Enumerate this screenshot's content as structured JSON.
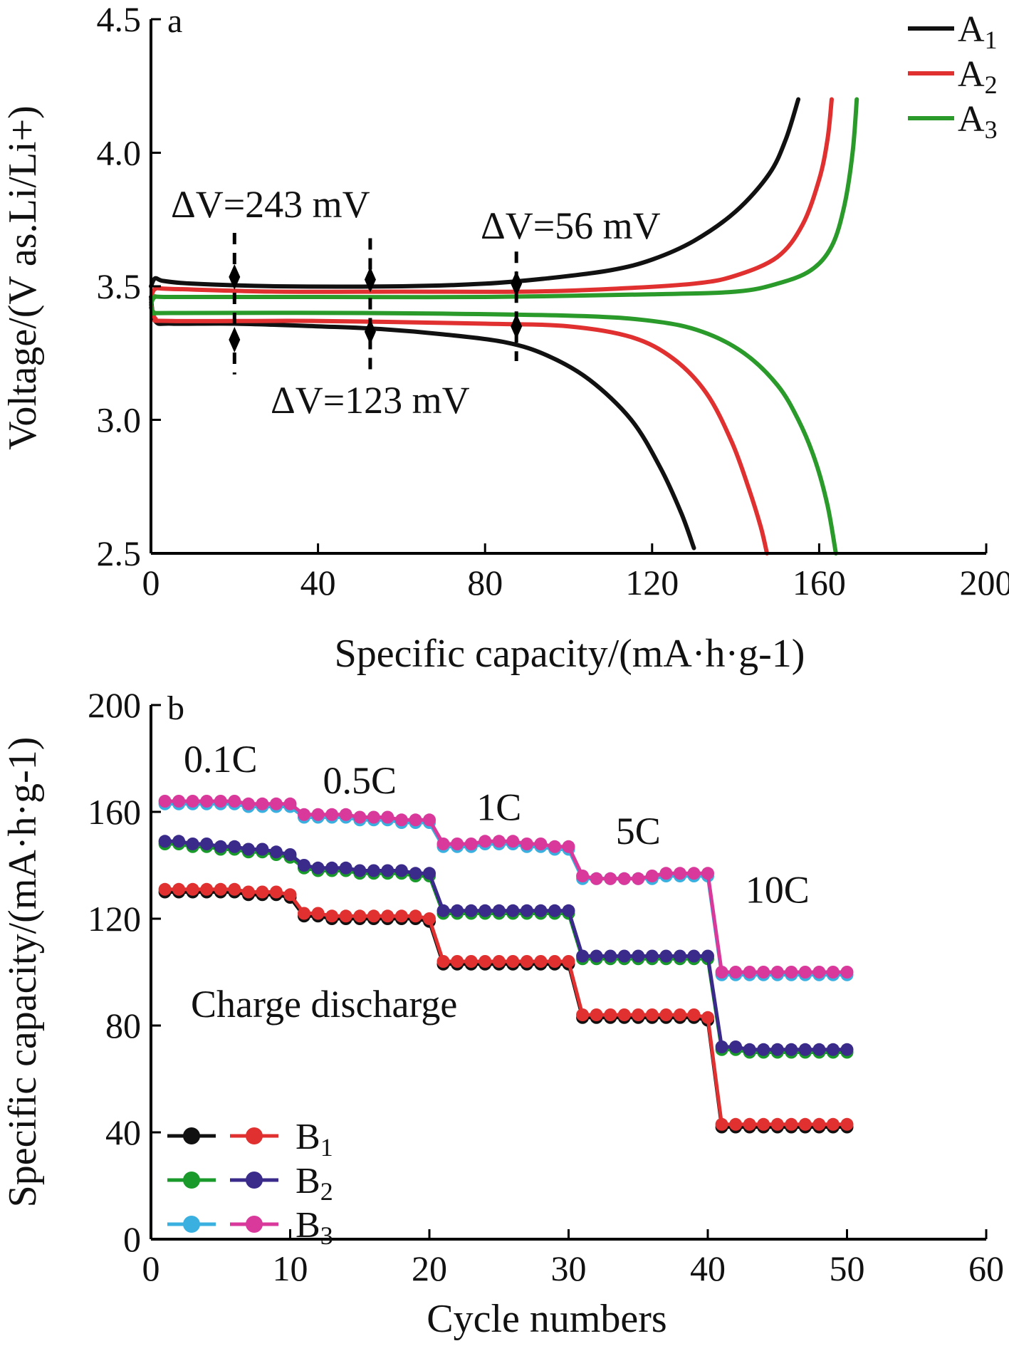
{
  "chart_data": [
    {
      "type": "line",
      "panel_label": "a",
      "xlabel": "Specific capacity/(mA·h·g-1)",
      "ylabel": "Voltage/(V as.Li/Li+)",
      "xlim": [
        0,
        200
      ],
      "ylim": [
        2.5,
        4.5
      ],
      "x_ticks": [
        "0",
        "40",
        "80",
        "120",
        "160",
        "200"
      ],
      "y_ticks": [
        "2.5",
        "3.0",
        "3.5",
        "4.0",
        "4.5"
      ],
      "annotations": [
        "ΔV=243 mV",
        "ΔV=123 mV",
        "ΔV=56 mV"
      ],
      "annotation_x": [
        20,
        52.5,
        87.5
      ],
      "legend_position": "top-right",
      "series": [
        {
          "name": "A1",
          "color": "#111111",
          "charge": [
            [
              0,
              3.5
            ],
            [
              1,
              3.53
            ],
            [
              3,
              3.52
            ],
            [
              10,
              3.51
            ],
            [
              30,
              3.5
            ],
            [
              60,
              3.5
            ],
            [
              80,
              3.51
            ],
            [
              95,
              3.53
            ],
            [
              110,
              3.56
            ],
            [
              120,
              3.6
            ],
            [
              130,
              3.67
            ],
            [
              140,
              3.78
            ],
            [
              148,
              3.92
            ],
            [
              152,
              4.05
            ],
            [
              155,
              4.2
            ]
          ],
          "discharge": [
            [
              0,
              3.46
            ],
            [
              1,
              3.37
            ],
            [
              5,
              3.36
            ],
            [
              20,
              3.36
            ],
            [
              40,
              3.35
            ],
            [
              55,
              3.34
            ],
            [
              70,
              3.32
            ],
            [
              85,
              3.29
            ],
            [
              95,
              3.24
            ],
            [
              105,
              3.15
            ],
            [
              115,
              3.0
            ],
            [
              122,
              2.82
            ],
            [
              127,
              2.65
            ],
            [
              130,
              2.52
            ]
          ]
        },
        {
          "name": "A2",
          "color": "#e03030",
          "charge": [
            [
              0,
              3.45
            ],
            [
              1,
              3.49
            ],
            [
              5,
              3.49
            ],
            [
              30,
              3.48
            ],
            [
              60,
              3.48
            ],
            [
              90,
              3.48
            ],
            [
              110,
              3.49
            ],
            [
              130,
              3.51
            ],
            [
              140,
              3.54
            ],
            [
              150,
              3.61
            ],
            [
              156,
              3.73
            ],
            [
              160,
              3.9
            ],
            [
              162,
              4.05
            ],
            [
              163,
              4.2
            ]
          ],
          "discharge": [
            [
              0,
              3.44
            ],
            [
              1,
              3.38
            ],
            [
              5,
              3.37
            ],
            [
              40,
              3.37
            ],
            [
              80,
              3.36
            ],
            [
              100,
              3.35
            ],
            [
              115,
              3.31
            ],
            [
              125,
              3.23
            ],
            [
              133,
              3.1
            ],
            [
              139,
              2.92
            ],
            [
              143,
              2.75
            ],
            [
              146,
              2.6
            ],
            [
              147.5,
              2.5
            ]
          ]
        },
        {
          "name": "A3",
          "color": "#2a9a2a",
          "charge": [
            [
              0,
              3.43
            ],
            [
              1,
              3.46
            ],
            [
              5,
              3.46
            ],
            [
              40,
              3.46
            ],
            [
              80,
              3.46
            ],
            [
              120,
              3.47
            ],
            [
              140,
              3.48
            ],
            [
              150,
              3.51
            ],
            [
              158,
              3.56
            ],
            [
              163,
              3.65
            ],
            [
              166,
              3.8
            ],
            [
              168,
              4.0
            ],
            [
              169,
              4.2
            ]
          ],
          "discharge": [
            [
              0,
              3.42
            ],
            [
              1,
              3.4
            ],
            [
              5,
              3.4
            ],
            [
              50,
              3.4
            ],
            [
              100,
              3.39
            ],
            [
              120,
              3.37
            ],
            [
              132,
              3.33
            ],
            [
              142,
              3.25
            ],
            [
              150,
              3.13
            ],
            [
              155,
              3.0
            ],
            [
              159,
              2.85
            ],
            [
              162,
              2.68
            ],
            [
              164,
              2.5
            ]
          ]
        }
      ]
    },
    {
      "type": "line",
      "panel_label": "b",
      "xlabel": "Cycle numbers",
      "ylabel": "Specific capacity/(mA·h·g-1)",
      "xlim": [
        0,
        60
      ],
      "ylim": [
        0,
        200
      ],
      "x_ticks": [
        "0",
        "10",
        "20",
        "30",
        "40",
        "50",
        "60"
      ],
      "y_ticks": [
        "0",
        "40",
        "80",
        "120",
        "160",
        "200"
      ],
      "rate_labels": [
        "0.1C",
        "0.5C",
        "1C",
        "5C",
        "10C"
      ],
      "rate_label_x": [
        5,
        15,
        25,
        35,
        45
      ],
      "annotations": [
        "Charge discharge"
      ],
      "legend_position": "lower-left",
      "legend_groups": [
        {
          "name": "B1",
          "markers": [
            "#111111",
            "#e03030"
          ]
        },
        {
          "name": "B2",
          "markers": [
            "#1a9a2a",
            "#3a2a8a"
          ]
        },
        {
          "name": "B3",
          "markers": [
            "#3ab0e0",
            "#d8399a"
          ]
        }
      ],
      "x": [
        1,
        2,
        3,
        4,
        5,
        6,
        7,
        8,
        9,
        10,
        11,
        12,
        13,
        14,
        15,
        16,
        17,
        18,
        19,
        20,
        21,
        22,
        23,
        24,
        25,
        26,
        27,
        28,
        29,
        30,
        31,
        32,
        33,
        34,
        35,
        36,
        37,
        38,
        39,
        40,
        41,
        42,
        43,
        44,
        45,
        46,
        47,
        48,
        49,
        50
      ],
      "series": [
        {
          "name": "B1 charge",
          "color": "#111111",
          "values": [
            130,
            130,
            130,
            130,
            130,
            130,
            129,
            129,
            129,
            128,
            121,
            121,
            120,
            120,
            120,
            120,
            120,
            120,
            120,
            119,
            103,
            103,
            103,
            103,
            103,
            103,
            103,
            103,
            103,
            103,
            83,
            83,
            83,
            83,
            83,
            83,
            83,
            83,
            83,
            82,
            42,
            42,
            42,
            42,
            42,
            42,
            42,
            42,
            42,
            42
          ]
        },
        {
          "name": "B1 discharge",
          "color": "#e03030",
          "values": [
            131,
            131,
            131,
            131,
            131,
            131,
            130,
            130,
            130,
            129,
            122,
            122,
            121,
            121,
            121,
            121,
            121,
            121,
            121,
            120,
            104,
            104,
            104,
            104,
            104,
            104,
            104,
            104,
            104,
            104,
            84,
            84,
            84,
            84,
            84,
            84,
            84,
            84,
            84,
            83,
            43,
            43,
            43,
            43,
            43,
            43,
            43,
            43,
            43,
            43
          ]
        },
        {
          "name": "B2 charge",
          "color": "#1a9a2a",
          "values": [
            148,
            148,
            147,
            147,
            146,
            146,
            145,
            145,
            144,
            143,
            139,
            138,
            138,
            138,
            137,
            137,
            137,
            137,
            136,
            136,
            122,
            122,
            122,
            122,
            122,
            122,
            122,
            122,
            122,
            122,
            105,
            105,
            105,
            105,
            105,
            105,
            105,
            105,
            105,
            105,
            71,
            71,
            70,
            70,
            70,
            70,
            70,
            70,
            70,
            70
          ]
        },
        {
          "name": "B2 discharge",
          "color": "#3a2a8a",
          "values": [
            149,
            149,
            148,
            148,
            147,
            147,
            146,
            146,
            145,
            144,
            140,
            139,
            139,
            139,
            138,
            138,
            138,
            138,
            137,
            137,
            123,
            123,
            123,
            123,
            123,
            123,
            123,
            123,
            123,
            123,
            106,
            106,
            106,
            106,
            106,
            106,
            106,
            106,
            106,
            106,
            72,
            72,
            71,
            71,
            71,
            71,
            71,
            71,
            71,
            71
          ]
        },
        {
          "name": "B3 charge",
          "color": "#3ab0e0",
          "values": [
            163,
            163,
            163,
            163,
            163,
            163,
            162,
            162,
            162,
            162,
            158,
            158,
            158,
            158,
            157,
            157,
            157,
            156,
            156,
            156,
            147,
            147,
            147,
            148,
            148,
            148,
            147,
            147,
            146,
            146,
            135,
            135,
            135,
            135,
            135,
            135,
            136,
            136,
            136,
            136,
            99,
            99,
            99,
            99,
            99,
            99,
            99,
            99,
            99,
            99
          ]
        },
        {
          "name": "B3 discharge",
          "color": "#d8399a",
          "values": [
            164,
            164,
            164,
            164,
            164,
            164,
            163,
            163,
            163,
            163,
            159,
            159,
            159,
            159,
            158,
            158,
            158,
            157,
            157,
            157,
            148,
            148,
            148,
            149,
            149,
            149,
            148,
            148,
            147,
            147,
            136,
            135,
            135,
            135,
            135,
            136,
            137,
            137,
            137,
            137,
            100,
            100,
            100,
            100,
            100,
            100,
            100,
            100,
            100,
            100
          ]
        }
      ]
    }
  ]
}
